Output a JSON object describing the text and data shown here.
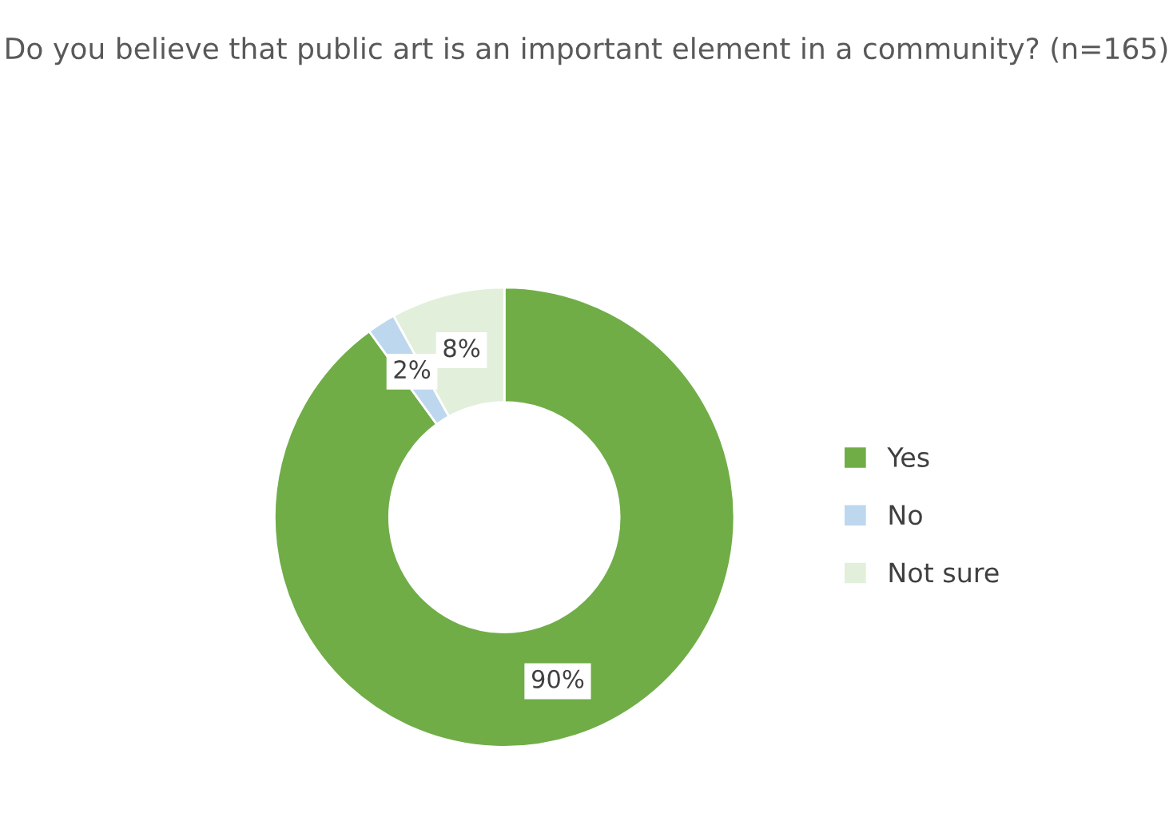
{
  "chart_data": {
    "type": "donut",
    "title": "Do you believe that public art is an important element in a community? (n=165)",
    "categories": [
      "Yes",
      "No",
      "Not sure"
    ],
    "values": [
      90,
      2,
      8
    ],
    "colors": [
      "#70ad47",
      "#bdd7ee",
      "#e2efda"
    ],
    "value_labels": [
      "90%",
      "2%",
      "8%"
    ],
    "legend": "right"
  }
}
